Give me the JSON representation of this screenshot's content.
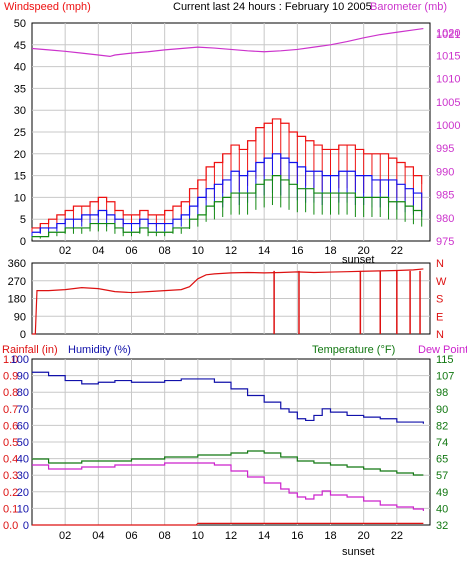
{
  "colors": {
    "background": "#ffffff",
    "grid": "#c8c8c8",
    "axis_text": "#000000",
    "wind_red": "#ee1111",
    "wind_blue": "#1111ee",
    "wind_green": "#118811",
    "barometer": "#cc33cc",
    "direction": "#dd1111",
    "rain": "#dd1111",
    "humidity": "#1111aa",
    "temperature": "#117711",
    "dewpoint": "#cc22cc"
  },
  "chart_data": [
    {
      "type": "line",
      "title": "Current last 24 hours : February 10 2005",
      "left_axis_label": "Windspeed (mph)",
      "right_axis_label": "Barometer (mb)",
      "left_ticks": [
        "0",
        "5",
        "10",
        "15",
        "20",
        "25",
        "30",
        "35",
        "40",
        "45",
        "50"
      ],
      "right_ticks": [
        "975",
        "980",
        "985",
        "990",
        "995",
        "1000",
        "1005",
        "1010",
        "1015",
        "1020"
      ],
      "right_top_tick": "1021",
      "x_ticks": [
        "02",
        "04",
        "06",
        "08",
        "10",
        "12",
        "14",
        "16",
        "18",
        "20",
        "22"
      ],
      "x_annotation": "sunset",
      "x_range_hours": [
        0,
        24
      ],
      "ylim_left": [
        0,
        50
      ],
      "ylim_right": [
        975,
        1022
      ],
      "grid": true,
      "series": [
        {
          "axis": "left",
          "color_key": "wind_red",
          "x": [
            0,
            0.5,
            1,
            1.5,
            2,
            2.5,
            3,
            3.5,
            4,
            4.5,
            5,
            5.5,
            6,
            6.5,
            7,
            7.5,
            8,
            8.5,
            9,
            9.5,
            10,
            10.5,
            11,
            11.5,
            12,
            12.5,
            13,
            13.5,
            14,
            14.5,
            15,
            15.5,
            16,
            16.5,
            17,
            17.5,
            18,
            18.5,
            19,
            19.5,
            20,
            20.5,
            21,
            21.5,
            22,
            22.5,
            23,
            23.5
          ],
          "values": [
            3,
            4,
            5,
            6,
            7,
            8,
            8,
            9,
            10,
            9,
            7,
            6,
            6,
            7,
            6,
            6,
            7,
            8,
            9,
            12,
            14,
            17,
            18,
            20,
            22,
            21,
            23,
            26,
            27,
            28,
            27,
            25,
            24,
            23,
            22,
            21,
            21,
            22,
            22,
            21,
            20,
            20,
            20,
            19,
            18,
            17,
            15,
            13
          ]
        },
        {
          "axis": "left",
          "color_key": "wind_blue",
          "x": [
            0,
            0.5,
            1,
            1.5,
            2,
            2.5,
            3,
            3.5,
            4,
            4.5,
            5,
            5.5,
            6,
            6.5,
            7,
            7.5,
            8,
            8.5,
            9,
            9.5,
            10,
            10.5,
            11,
            11.5,
            12,
            12.5,
            13,
            13.5,
            14,
            14.5,
            15,
            15.5,
            16,
            16.5,
            17,
            17.5,
            18,
            18.5,
            19,
            19.5,
            20,
            20.5,
            21,
            21.5,
            22,
            22.5,
            23,
            23.5
          ],
          "values": [
            2,
            3,
            3,
            4,
            5,
            5,
            6,
            6,
            7,
            6,
            5,
            4,
            4,
            5,
            4,
            4,
            4,
            5,
            6,
            8,
            10,
            12,
            13,
            14,
            16,
            15,
            16,
            18,
            19,
            20,
            19,
            18,
            17,
            16,
            16,
            15,
            15,
            16,
            16,
            15,
            15,
            14,
            14,
            14,
            13,
            12,
            11,
            10
          ]
        },
        {
          "axis": "left",
          "color_key": "wind_green",
          "x": [
            0,
            0.5,
            1,
            1.5,
            2,
            2.5,
            3,
            3.5,
            4,
            4.5,
            5,
            5.5,
            6,
            6.5,
            7,
            7.5,
            8,
            8.5,
            9,
            9.5,
            10,
            10.5,
            11,
            11.5,
            12,
            12.5,
            13,
            13.5,
            14,
            14.5,
            15,
            15.5,
            16,
            16.5,
            17,
            17.5,
            18,
            18.5,
            19,
            19.5,
            20,
            20.5,
            21,
            21.5,
            22,
            22.5,
            23,
            23.5
          ],
          "values": [
            1,
            1,
            2,
            2,
            3,
            3,
            3,
            4,
            4,
            4,
            3,
            2,
            2,
            3,
            2,
            2,
            2,
            3,
            3,
            5,
            6,
            8,
            9,
            10,
            11,
            11,
            11,
            13,
            14,
            15,
            14,
            13,
            12,
            12,
            11,
            11,
            11,
            11,
            11,
            10,
            10,
            10,
            10,
            9,
            9,
            8,
            7,
            6
          ]
        },
        {
          "axis": "right",
          "color_key": "barometer",
          "x": [
            0,
            1,
            2,
            3,
            4,
            4.7,
            5,
            6,
            7,
            8,
            9,
            10,
            11,
            12,
            13,
            14,
            15,
            16,
            17,
            18,
            19,
            20,
            21,
            22,
            23,
            23.6
          ],
          "values": [
            1016.5,
            1016.2,
            1015.9,
            1015.5,
            1015.1,
            1014.8,
            1015.1,
            1015.5,
            1015.8,
            1016.2,
            1016.5,
            1016.8,
            1016.6,
            1016.3,
            1016.0,
            1015.8,
            1016.0,
            1016.3,
            1016.8,
            1017.3,
            1018.0,
            1018.8,
            1019.5,
            1020.0,
            1020.5,
            1020.8
          ]
        }
      ]
    },
    {
      "type": "line",
      "left_ticks": [
        "0",
        "90",
        "180",
        "270",
        "360"
      ],
      "right_labels": [
        "N",
        "W",
        "S",
        "E",
        "N"
      ],
      "ylim": [
        0,
        360
      ],
      "x_range_hours": [
        0,
        24
      ],
      "grid": true,
      "series": [
        {
          "color_key": "direction",
          "x": [
            0,
            0.2,
            0.3,
            1,
            2,
            3,
            4,
            5,
            6,
            7,
            8,
            9,
            9.5,
            10,
            10.5,
            11,
            12,
            13,
            14,
            15,
            16,
            17,
            18,
            19,
            20,
            21,
            22,
            23,
            23.6
          ],
          "values": [
            0,
            0,
            220,
            220,
            225,
            235,
            230,
            215,
            210,
            215,
            220,
            225,
            240,
            280,
            300,
            305,
            310,
            312,
            310,
            312,
            315,
            312,
            314,
            316,
            318,
            320,
            322,
            325,
            330
          ]
        }
      ],
      "dropouts_hours": [
        14.6,
        16.1,
        19.8,
        21.0,
        22.0,
        22.8,
        23.4
      ]
    },
    {
      "type": "line",
      "labels": {
        "rainfall": "Rainfall (in)",
        "humidity": "Humidity (%)",
        "temperature": "Temperature (°F)",
        "dewpoint": "Dew Point"
      },
      "left_ticks_primary": [
        "0.0",
        "0.1",
        "0.2",
        "0.3",
        "0.4",
        "0.5",
        "0.6",
        "0.7",
        "0.8",
        "0.9",
        "1.0"
      ],
      "left_ticks_secondary": [
        "0",
        "10",
        "20",
        "30",
        "40",
        "50",
        "60",
        "70",
        "80",
        "90",
        "100"
      ],
      "right_ticks": [
        "32",
        "40",
        "49",
        "57",
        "65",
        "74",
        "82",
        "90",
        "98",
        "107",
        "115"
      ],
      "x_ticks": [
        "02",
        "04",
        "06",
        "08",
        "10",
        "12",
        "14",
        "16",
        "18",
        "20",
        "22"
      ],
      "x_annotation": "sunset",
      "x_range_hours": [
        0,
        24
      ],
      "ylim_humidity": [
        0,
        100
      ],
      "ylim_temperature": [
        32,
        115
      ],
      "grid": true,
      "series": [
        {
          "name": "Humidity (%)",
          "color_key": "humidity",
          "x": [
            0,
            1,
            2,
            3,
            4,
            5,
            6,
            7,
            8,
            9,
            10,
            11,
            12,
            13,
            14,
            15,
            15.5,
            16,
            16.5,
            17,
            17.5,
            18,
            19,
            20,
            21,
            22,
            23,
            23.6
          ],
          "values": [
            92,
            90,
            87,
            85,
            86,
            87,
            86,
            86,
            87,
            88,
            88,
            86,
            82,
            78,
            74,
            70,
            68,
            64,
            63,
            66,
            70,
            68,
            66,
            65,
            64,
            62,
            62,
            61
          ]
        },
        {
          "name": "Temperature (°F)",
          "color_key": "temperature",
          "x": [
            0,
            1,
            2,
            3,
            4,
            5,
            6,
            7,
            8,
            9,
            10,
            11,
            12,
            13,
            14,
            15,
            16,
            17,
            18,
            19,
            20,
            21,
            22,
            23,
            23.6
          ],
          "values": [
            65,
            63,
            63,
            64,
            64,
            64,
            65,
            65,
            66,
            66,
            67,
            67,
            68,
            69,
            68,
            66,
            64,
            63,
            62,
            61,
            60,
            59,
            58,
            57,
            57
          ]
        },
        {
          "name": "Dew Point",
          "color_key": "dewpoint",
          "x": [
            0,
            1,
            2,
            3,
            4,
            5,
            6,
            7,
            8,
            9,
            10,
            11,
            12,
            13,
            14,
            15,
            15.5,
            16,
            16.5,
            17,
            17.5,
            18,
            19,
            20,
            21,
            22,
            23,
            23.6
          ],
          "values": [
            62,
            60,
            60,
            61,
            61,
            62,
            62,
            62,
            63,
            63,
            63,
            62,
            59,
            56,
            53,
            50,
            48,
            46,
            45,
            47,
            49,
            47,
            46,
            44,
            42,
            41,
            40,
            39
          ]
        },
        {
          "name": "Rainfall (in)",
          "color_key": "rain",
          "x": [
            0,
            8,
            9.9,
            10,
            16,
            23.6
          ],
          "values": [
            0.0,
            0.0,
            0.0,
            0.01,
            0.01,
            0.01
          ]
        }
      ]
    }
  ]
}
